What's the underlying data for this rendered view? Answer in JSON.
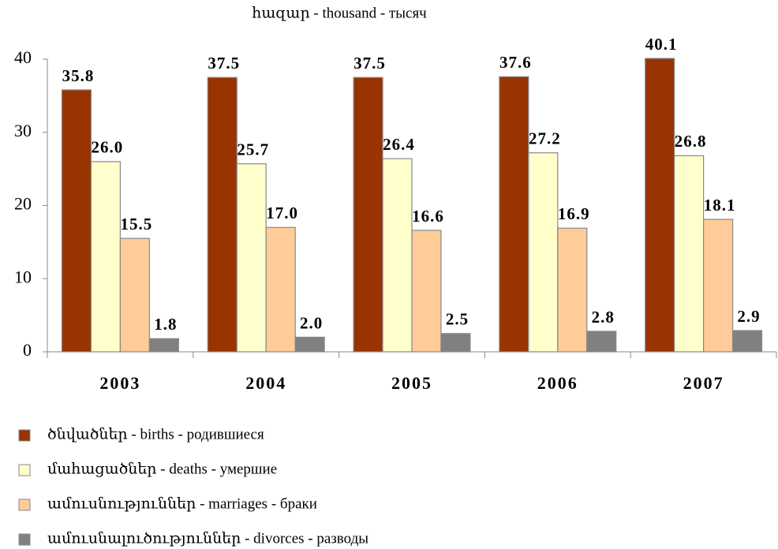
{
  "chart_data": {
    "type": "bar",
    "title": "հազար - thousand - тысяч",
    "categories": [
      "2003",
      "2004",
      "2005",
      "2006",
      "2007"
    ],
    "series": [
      {
        "name": "ծնվածներ - births - родившиеся",
        "color": "#993300",
        "values": [
          35.8,
          37.5,
          37.5,
          37.6,
          40.1
        ],
        "value_labels": [
          "35.8",
          "37.5",
          "37.5",
          "37.6",
          "40.1"
        ]
      },
      {
        "name": "մահացածներ - deaths - умершие",
        "color": "#ffffcc",
        "values": [
          26.0,
          25.7,
          26.4,
          27.2,
          26.8
        ],
        "value_labels": [
          "26.0",
          "25.7",
          "26.4",
          "27.2",
          "26.8"
        ]
      },
      {
        "name": "ամուսնություններ - marriages - браки",
        "color": "#ffcc99",
        "values": [
          15.5,
          17.0,
          16.6,
          16.9,
          18.1
        ],
        "value_labels": [
          "15.5",
          "17.0",
          "16.6",
          "16.9",
          "18.1"
        ]
      },
      {
        "name": "ամուսնալուծություններ - divorces - разводы",
        "color": "#808080",
        "values": [
          1.8,
          2.0,
          2.5,
          2.8,
          2.9
        ],
        "value_labels": [
          "1.8",
          "2.0",
          "2.5",
          "2.8",
          "2.9"
        ]
      }
    ],
    "ylim": [
      0,
      40
    ],
    "yticks": [
      0,
      10,
      20,
      30,
      40
    ],
    "grid": false,
    "legend": "bottom"
  }
}
